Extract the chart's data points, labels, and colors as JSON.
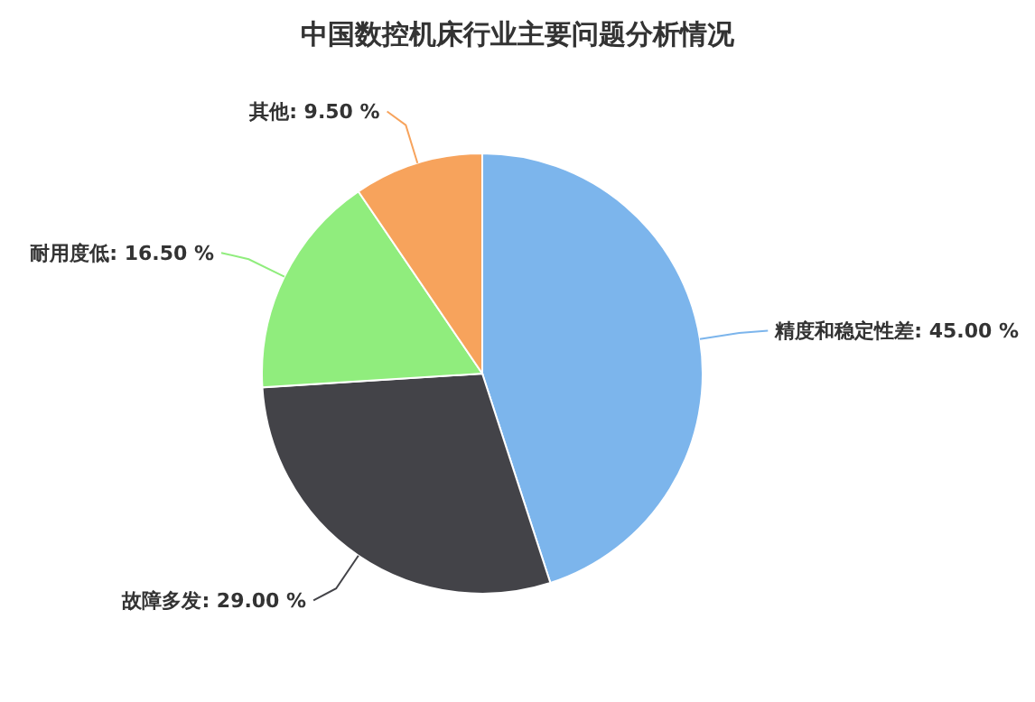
{
  "chart_data": {
    "type": "pie",
    "title": "中国数控机床行业主要问题分析情况",
    "categories": [
      "精度和稳定性差",
      "故障多发",
      "耐用度低",
      "其他"
    ],
    "values": [
      45,
      29,
      16.5,
      9.5
    ],
    "value_labels": [
      "45.00 %",
      "29.00 %",
      "16.50 %",
      "9.50 %"
    ],
    "colors": [
      "#7cb5ec",
      "#434348",
      "#90ed7d",
      "#f7a35c"
    ]
  }
}
